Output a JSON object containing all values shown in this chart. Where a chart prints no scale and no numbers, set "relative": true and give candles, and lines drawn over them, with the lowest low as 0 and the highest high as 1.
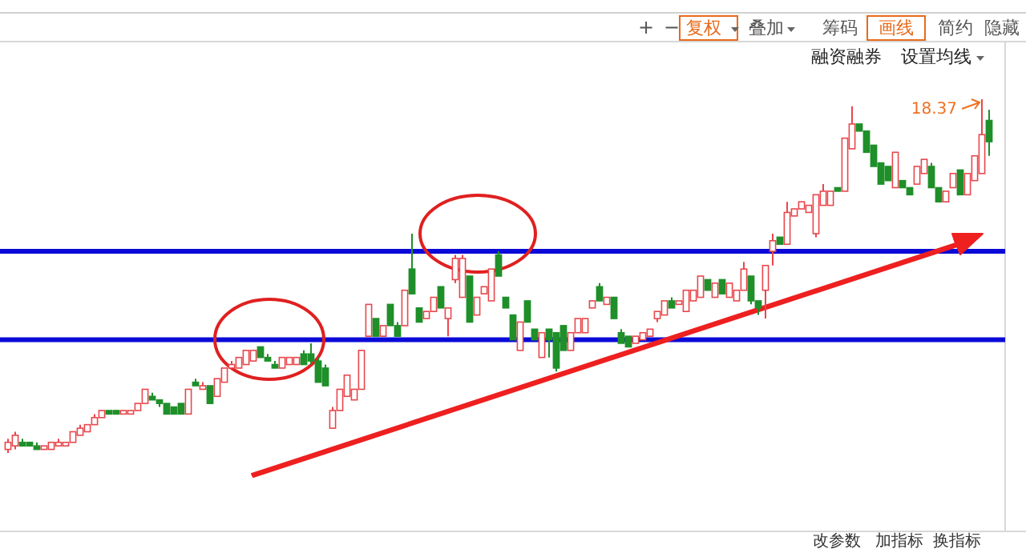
{
  "chart_data": {
    "type": "candlestick",
    "relative": true,
    "categories": [
      null,
      null,
      null,
      null,
      null,
      null,
      null,
      null,
      null,
      null,
      null,
      null,
      null,
      null,
      null,
      null,
      null,
      null,
      null,
      null,
      null,
      null,
      null,
      null,
      null,
      null,
      null,
      null,
      null,
      null,
      null,
      null,
      null,
      null,
      null,
      null,
      null,
      null,
      null,
      null,
      null,
      null,
      null,
      null,
      null,
      null,
      null,
      null,
      null,
      null,
      null,
      null,
      null,
      null,
      null,
      null,
      null,
      null,
      null,
      null,
      null,
      null,
      null,
      null,
      null,
      null,
      null,
      null,
      null,
      null,
      null,
      null,
      null,
      null,
      null,
      null,
      null,
      null,
      null,
      null,
      null,
      null,
      null,
      null,
      null,
      null,
      null,
      null,
      null,
      null,
      null,
      null,
      null,
      null,
      null,
      null,
      null,
      null,
      null,
      null,
      null,
      null,
      null,
      null,
      null,
      null,
      null,
      null,
      null,
      null,
      null,
      null,
      null,
      null,
      null,
      null,
      null,
      null,
      null,
      null,
      null,
      null,
      null,
      null,
      null,
      null,
      null,
      null,
      null,
      null,
      null,
      null,
      null,
      null,
      null,
      null,
      null
    ],
    "ohlc": [
      [
        0.01,
        0.04,
        0,
        0.03
      ],
      [
        0.02,
        0.06,
        0.01,
        0.05
      ],
      [
        0.03,
        0.04,
        0.02,
        0.02
      ],
      [
        0.03,
        0.03,
        0.02,
        0.02
      ],
      [
        0.02,
        0.03,
        0.01,
        0.01
      ],
      [
        0.01,
        0.02,
        0.01,
        0.02
      ],
      [
        0.01,
        0.03,
        0.01,
        0.03
      ],
      [
        0.02,
        0.04,
        0.02,
        0.03
      ],
      [
        0.02,
        0.03,
        0.02,
        0.03
      ],
      [
        0.03,
        0.06,
        0.03,
        0.06
      ],
      [
        0.05,
        0.08,
        0.05,
        0.07
      ],
      [
        0.06,
        0.08,
        0.06,
        0.08
      ],
      [
        0.08,
        0.11,
        0.08,
        0.1
      ],
      [
        0.1,
        0.12,
        0.1,
        0.12
      ],
      [
        0.12,
        0.12,
        0.11,
        0.11
      ],
      [
        0.12,
        0.12,
        0.11,
        0.11
      ],
      [
        0.11,
        0.12,
        0.11,
        0.12
      ],
      [
        0.11,
        0.12,
        0.11,
        0.12
      ],
      [
        0.12,
        0.14,
        0.12,
        0.14
      ],
      [
        0.14,
        0.18,
        0.14,
        0.18
      ],
      [
        0.16,
        0.17,
        0.15,
        0.15
      ],
      [
        0.15,
        0.15,
        0.13,
        0.14
      ],
      [
        0.14,
        0.14,
        0.11,
        0.11
      ],
      [
        0.13,
        0.13,
        0.11,
        0.11
      ],
      [
        0.14,
        0.14,
        0.11,
        0.11
      ],
      [
        0.11,
        0.18,
        0.11,
        0.18
      ],
      [
        0.2,
        0.21,
        0.19,
        0.19
      ],
      [
        0.18,
        0.2,
        0.18,
        0.19
      ],
      [
        0.19,
        0.19,
        0.14,
        0.14
      ],
      [
        0.16,
        0.21,
        0.16,
        0.21
      ],
      [
        0.2,
        0.24,
        0.2,
        0.24
      ],
      [
        0.24,
        0.26,
        0.24,
        0.25
      ],
      [
        0.24,
        0.27,
        0.24,
        0.27
      ],
      [
        0.25,
        0.29,
        0.25,
        0.29
      ],
      [
        0.26,
        0.29,
        0.26,
        0.29
      ],
      [
        0.3,
        0.3,
        0.27,
        0.27
      ],
      [
        0.27,
        0.28,
        0.26,
        0.26
      ],
      [
        0.25,
        0.26,
        0.24,
        0.24
      ],
      [
        0.24,
        0.27,
        0.24,
        0.27
      ],
      [
        0.25,
        0.27,
        0.25,
        0.27
      ],
      [
        0.25,
        0.27,
        0.25,
        0.27
      ],
      [
        0.28,
        0.29,
        0.25,
        0.25
      ],
      [
        0.28,
        0.31,
        0.25,
        0.26
      ],
      [
        0.26,
        0.27,
        0.2,
        0.2
      ],
      [
        0.24,
        0.25,
        0.19,
        0.19
      ],
      [
        0.07,
        0.13,
        0.07,
        0.12
      ],
      [
        0.12,
        0.18,
        0.12,
        0.18
      ],
      [
        0.16,
        0.22,
        0.16,
        0.22
      ],
      [
        0.15,
        0.18,
        0.15,
        0.18
      ],
      [
        0.18,
        0.29,
        0.18,
        0.29
      ],
      [
        0.33,
        0.42,
        0.33,
        0.42
      ],
      [
        0.38,
        0.38,
        0.33,
        0.33
      ],
      [
        0.33,
        0.36,
        0.33,
        0.36
      ],
      [
        0.42,
        0.42,
        0.36,
        0.36
      ],
      [
        0.36,
        0.37,
        0.33,
        0.33
      ],
      [
        0.36,
        0.46,
        0.36,
        0.46
      ],
      [
        0.52,
        0.62,
        0.45,
        0.45
      ],
      [
        0.41,
        0.41,
        0.37,
        0.37
      ],
      [
        0.38,
        0.4,
        0.38,
        0.4
      ],
      [
        0.4,
        0.44,
        0.4,
        0.44
      ],
      [
        0.47,
        0.47,
        0.41,
        0.41
      ],
      [
        0.38,
        0.41,
        0.33,
        0.41
      ],
      [
        0.49,
        0.56,
        0.48,
        0.55
      ],
      [
        0.44,
        0.56,
        0.44,
        0.55
      ],
      [
        0.5,
        0.5,
        0.37,
        0.37
      ],
      [
        0.39,
        0.44,
        0.39,
        0.44
      ],
      [
        0.45,
        0.47,
        0.45,
        0.47
      ],
      [
        0.43,
        0.52,
        0.43,
        0.52
      ],
      [
        0.56,
        0.57,
        0.5,
        0.5
      ],
      [
        0.44,
        0.44,
        0.41,
        0.41
      ],
      [
        0.39,
        0.39,
        0.32,
        0.32
      ],
      [
        0.29,
        0.37,
        0.29,
        0.37
      ],
      [
        0.43,
        0.43,
        0.37,
        0.37
      ],
      [
        0.35,
        0.35,
        0.32,
        0.32
      ],
      [
        0.27,
        0.34,
        0.27,
        0.34
      ],
      [
        0.35,
        0.35,
        0.27,
        0.32
      ],
      [
        0.34,
        0.34,
        0.23,
        0.24
      ],
      [
        0.36,
        0.36,
        0.29,
        0.29
      ],
      [
        0.29,
        0.34,
        0.29,
        0.34
      ],
      [
        0.34,
        0.38,
        0.34,
        0.38
      ],
      [
        0.34,
        0.38,
        0.34,
        0.38
      ],
      [
        0.41,
        0.43,
        0.41,
        0.43
      ],
      [
        0.47,
        0.48,
        0.43,
        0.43
      ],
      [
        0.42,
        0.44,
        0.42,
        0.44
      ],
      [
        0.44,
        0.44,
        0.38,
        0.38
      ],
      [
        0.34,
        0.35,
        0.31,
        0.31
      ],
      [
        0.33,
        0.33,
        0.3,
        0.3
      ],
      [
        0.31,
        0.33,
        0.31,
        0.33
      ],
      [
        0.32,
        0.34,
        0.32,
        0.34
      ],
      [
        0.33,
        0.35,
        0.33,
        0.35
      ],
      [
        0.38,
        0.4,
        0.37,
        0.4
      ],
      [
        0.39,
        0.43,
        0.39,
        0.43
      ],
      [
        0.43,
        0.44,
        0.41,
        0.41
      ],
      [
        0.42,
        0.43,
        0.42,
        0.43
      ],
      [
        0.4,
        0.46,
        0.4,
        0.46
      ],
      [
        0.43,
        0.46,
        0.43,
        0.46
      ],
      [
        0.44,
        0.5,
        0.44,
        0.5
      ],
      [
        0.49,
        0.49,
        0.46,
        0.46
      ],
      [
        0.44,
        0.48,
        0.44,
        0.48
      ],
      [
        0.49,
        0.49,
        0.45,
        0.45
      ],
      [
        0.44,
        0.48,
        0.44,
        0.48
      ],
      [
        0.43,
        0.46,
        0.43,
        0.46
      ],
      [
        0.46,
        0.54,
        0.46,
        0.52
      ],
      [
        0.5,
        0.5,
        0.42,
        0.43
      ],
      [
        0.43,
        0.43,
        0.39,
        0.41
      ],
      [
        0.46,
        0.53,
        0.38,
        0.53
      ],
      [
        0.57,
        0.62,
        0.53,
        0.6
      ],
      [
        0.61,
        0.61,
        0.59,
        0.59
      ],
      [
        0.59,
        0.71,
        0.59,
        0.68
      ],
      [
        0.67,
        0.69,
        0.67,
        0.69
      ],
      [
        0.69,
        0.71,
        0.69,
        0.71
      ],
      [
        0.68,
        0.7,
        0.68,
        0.7
      ],
      [
        0.62,
        0.73,
        0.61,
        0.73
      ],
      [
        0.7,
        0.76,
        0.7,
        0.74
      ],
      [
        0.7,
        0.74,
        0.7,
        0.74
      ],
      [
        0.75,
        0.75,
        0.74,
        0.74
      ],
      [
        0.74,
        0.89,
        0.74,
        0.89
      ],
      [
        0.86,
        0.98,
        0.86,
        0.93
      ],
      [
        0.93,
        0.93,
        0.91,
        0.91
      ],
      [
        0.91,
        0.91,
        0.85,
        0.85
      ],
      [
        0.87,
        0.87,
        0.81,
        0.81
      ],
      [
        0.82,
        0.82,
        0.76,
        0.76
      ],
      [
        0.81,
        0.81,
        0.77,
        0.77
      ],
      [
        0.75,
        0.85,
        0.75,
        0.85
      ],
      [
        0.77,
        0.77,
        0.75,
        0.75
      ],
      [
        0.75,
        0.75,
        0.73,
        0.73
      ],
      [
        0.76,
        0.81,
        0.76,
        0.81
      ],
      [
        0.79,
        0.83,
        0.79,
        0.83
      ],
      [
        0.81,
        0.82,
        0.75,
        0.75
      ],
      [
        0.75,
        0.75,
        0.71,
        0.71
      ],
      [
        0.71,
        0.74,
        0.71,
        0.74
      ],
      [
        0.75,
        0.79,
        0.75,
        0.79
      ],
      [
        0.8,
        0.8,
        0.73,
        0.73
      ],
      [
        0.73,
        0.79,
        0.73,
        0.79
      ],
      [
        0.77,
        0.84,
        0.77,
        0.84
      ],
      [
        0.79,
        1,
        0.79,
        0.9
      ],
      [
        0.94,
        0.97,
        0.84,
        0.88
      ]
    ],
    "ref_lines": [
      {
        "axis": "y",
        "value": 0.57,
        "color": "#0a0ad8"
      },
      {
        "axis": "y",
        "value": 0.32,
        "color": "#0a0ad8"
      }
    ],
    "annotations": [
      "18.37",
      "+",
      "−",
      "复权",
      "叠加",
      "筹码",
      "画线",
      "简约",
      "隐藏",
      "融资融券",
      "设置均线",
      "改参数",
      "加指标",
      "换指标"
    ]
  }
}
